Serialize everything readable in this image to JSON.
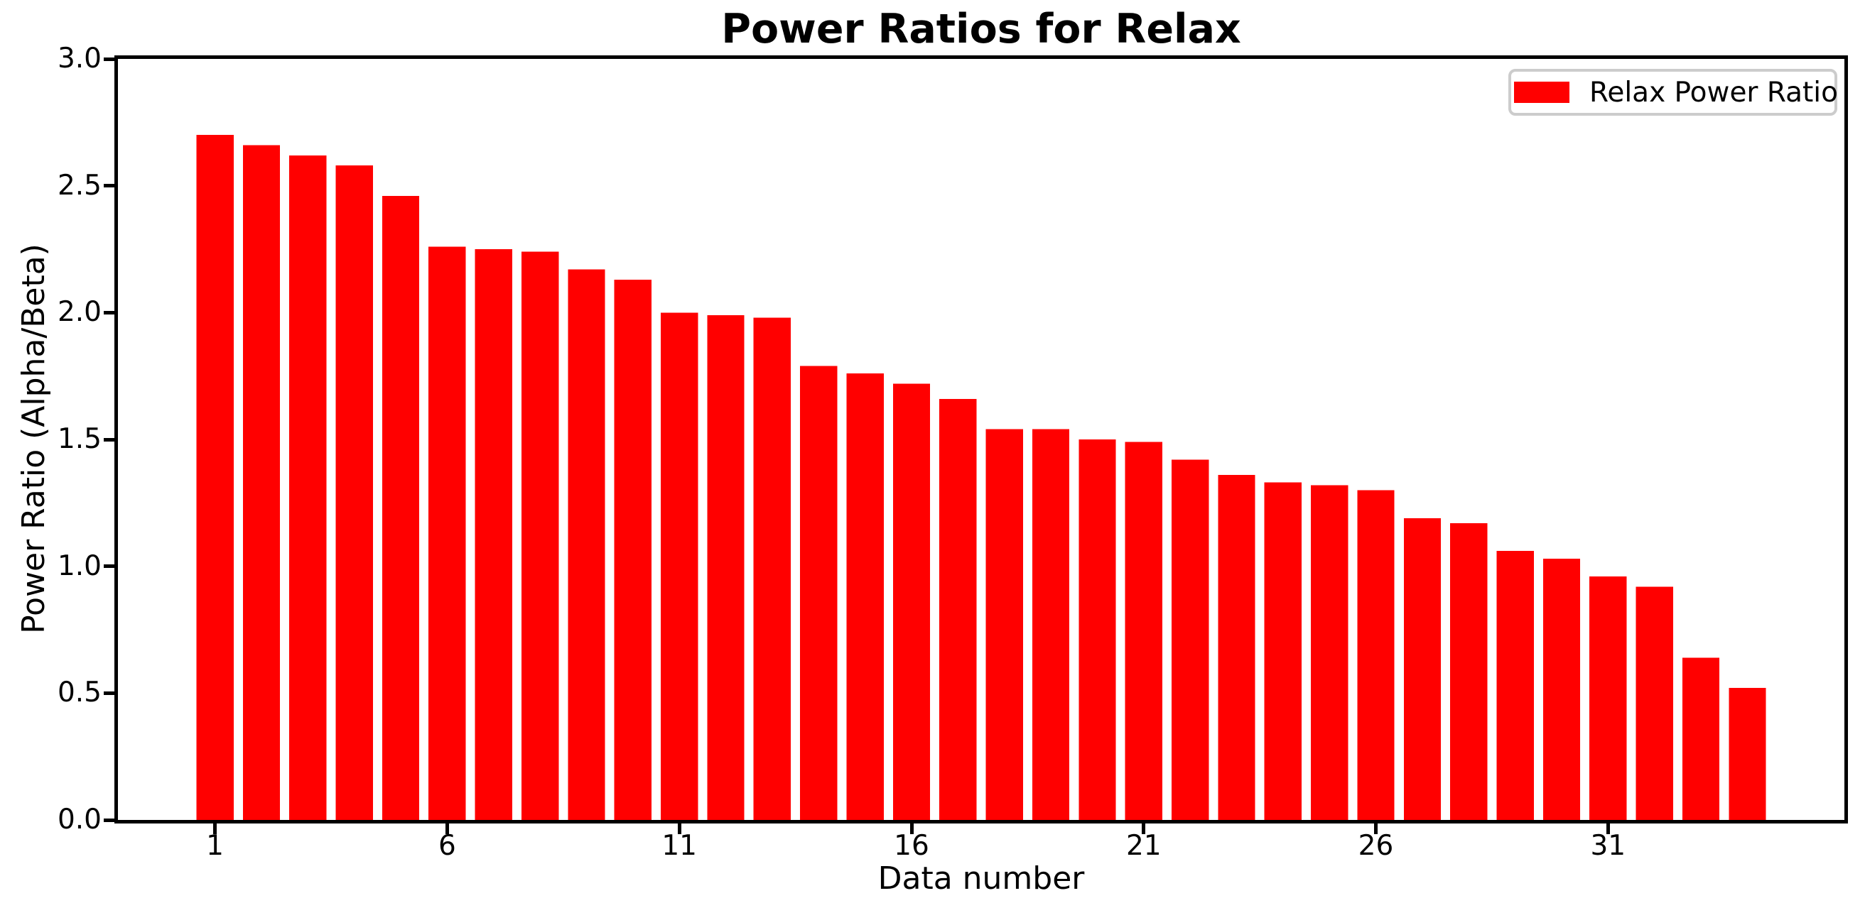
{
  "chart_data": {
    "type": "bar",
    "title": "Power Ratios for Relax",
    "xlabel": "Data number",
    "ylabel": "Power Ratio (Alpha/Beta)",
    "legend": {
      "label": "Relax Power Ratio",
      "position": "upper right",
      "swatch_color": "#ff0000",
      "border_color": "#cccccc"
    },
    "grid": false,
    "bar_width": 0.8,
    "xlim": [
      -1.09,
      36.09
    ],
    "ylim": [
      0,
      3
    ],
    "x": [
      1,
      2,
      3,
      4,
      5,
      6,
      7,
      8,
      9,
      10,
      11,
      12,
      13,
      14,
      15,
      16,
      17,
      18,
      19,
      20,
      21,
      22,
      23,
      24,
      25,
      26,
      27,
      28,
      29,
      30,
      31,
      32,
      33,
      34
    ],
    "series": [
      {
        "name": "Relax Power Ratio",
        "color": "#ff0000",
        "values": [
          2.7,
          2.66,
          2.62,
          2.58,
          2.46,
          2.26,
          2.25,
          2.24,
          2.17,
          2.13,
          2.0,
          1.99,
          1.98,
          1.79,
          1.76,
          1.72,
          1.66,
          1.54,
          1.54,
          1.5,
          1.49,
          1.42,
          1.36,
          1.33,
          1.32,
          1.3,
          1.19,
          1.17,
          1.06,
          1.03,
          0.96,
          0.92,
          0.64,
          0.52
        ]
      }
    ],
    "xticks": [
      1,
      6,
      11,
      16,
      21,
      26,
      31
    ],
    "xtick_labels": [
      "1",
      "6",
      "11",
      "16",
      "21",
      "26",
      "31"
    ],
    "yticks": [
      0.0,
      0.5,
      1.0,
      1.5,
      2.0,
      2.5,
      3.0
    ],
    "ytick_labels": [
      "0.0",
      "0.5",
      "1.0",
      "1.5",
      "2.0",
      "2.5",
      "3.0"
    ],
    "colors": {
      "bar": "#ff0000",
      "axis": "#000000",
      "background": "#ffffff",
      "text": "#000000"
    }
  }
}
